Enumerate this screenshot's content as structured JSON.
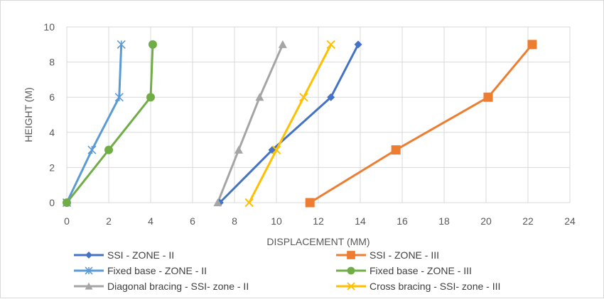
{
  "chart_data": {
    "type": "line",
    "xlabel": "DISPLACEMENT (MM)",
    "ylabel": "HEIGHT (M)",
    "xlim": [
      0,
      24
    ],
    "ylim": [
      0,
      10
    ],
    "x_ticks": [
      "0",
      "2",
      "4",
      "6",
      "8",
      "10",
      "12",
      "14",
      "16",
      "18",
      "20",
      "22",
      "24"
    ],
    "y_ticks": [
      "0",
      "2",
      "4",
      "6",
      "8",
      "10"
    ],
    "grid": true,
    "legend_position": "bottom",
    "series": [
      {
        "name": "SSI - ZONE - II",
        "color": "#4472c4",
        "marker": "diamond",
        "points": [
          [
            7.3,
            0
          ],
          [
            9.8,
            3
          ],
          [
            12.6,
            6
          ],
          [
            13.9,
            9
          ]
        ]
      },
      {
        "name": "SSI - ZONE - III",
        "color": "#ed7d31",
        "marker": "square",
        "points": [
          [
            11.6,
            0
          ],
          [
            15.7,
            3
          ],
          [
            20.1,
            6
          ],
          [
            22.2,
            9
          ]
        ]
      },
      {
        "name": "Fixed base - ZONE - II",
        "color": "#5b9bd5",
        "marker": "asterisk",
        "points": [
          [
            0,
            0
          ],
          [
            1.2,
            3
          ],
          [
            2.5,
            6
          ],
          [
            2.6,
            9
          ]
        ]
      },
      {
        "name": "Fixed base - ZONE - III",
        "color": "#70ad47",
        "marker": "circle",
        "points": [
          [
            0,
            0
          ],
          [
            2.0,
            3
          ],
          [
            4.0,
            6
          ],
          [
            4.1,
            9
          ]
        ]
      },
      {
        "name": "Diagonal bracing - SSI- zone - II",
        "color": "#a5a5a5",
        "marker": "triangle",
        "points": [
          [
            7.2,
            0
          ],
          [
            8.2,
            3
          ],
          [
            9.2,
            6
          ],
          [
            10.3,
            9
          ]
        ]
      },
      {
        "name": "Cross  bracing - SSI- zone - III",
        "color": "#ffc000",
        "marker": "x",
        "points": [
          [
            8.7,
            0
          ],
          [
            10.0,
            3
          ],
          [
            11.3,
            6
          ],
          [
            12.6,
            9
          ]
        ]
      }
    ]
  }
}
